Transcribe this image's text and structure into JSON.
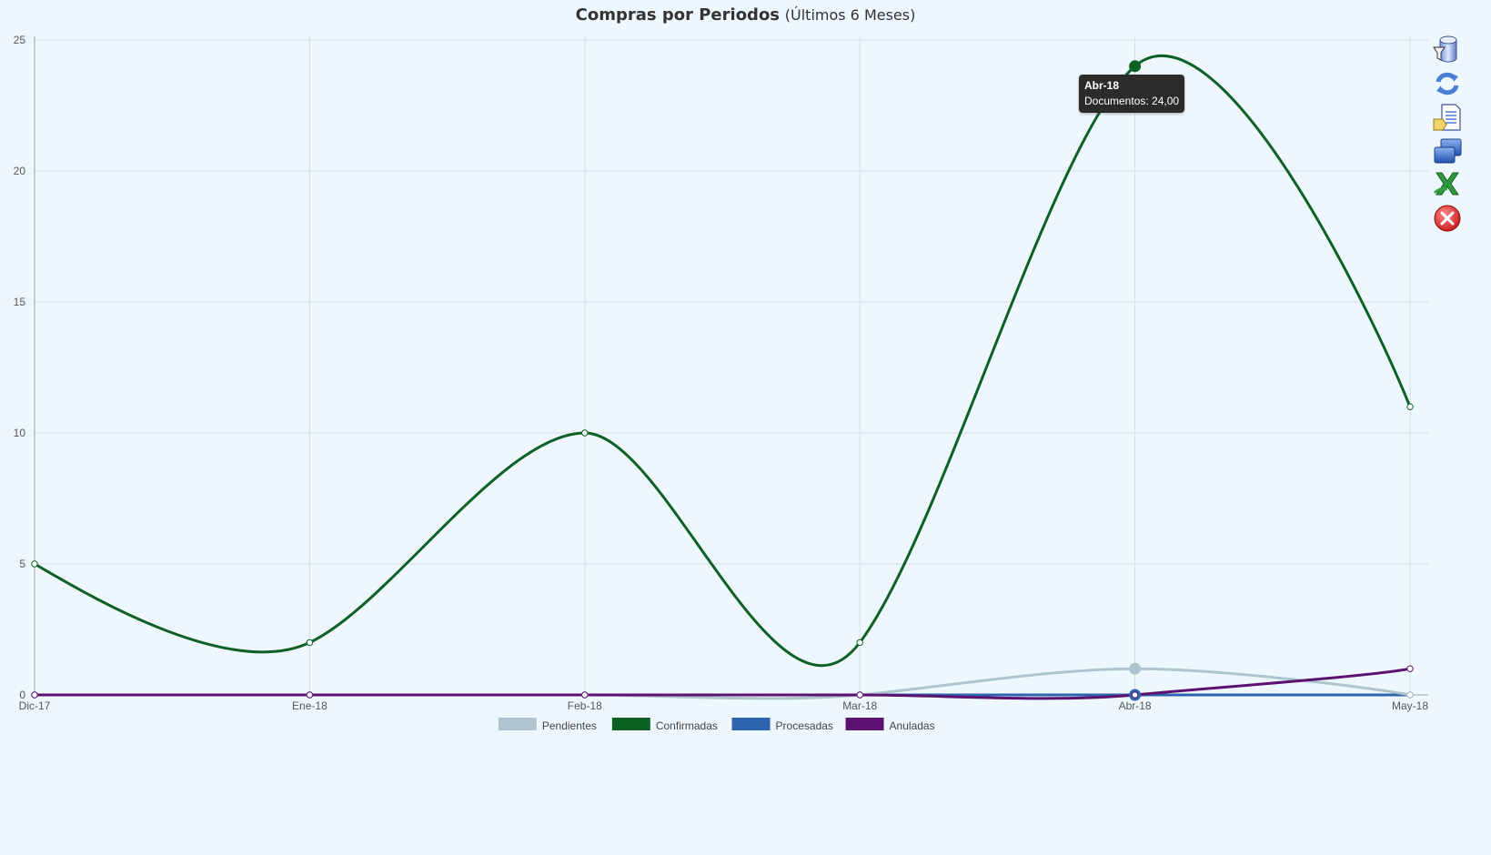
{
  "title": {
    "main": "Compras por Periodos",
    "sub": "(Últimos 6 Meses)"
  },
  "colors": {
    "background": "#eff7fe",
    "grid": "#d6dde4",
    "axis": "#9aa5ad",
    "tooltip_bg": "#2b2b2b"
  },
  "toolbar": {
    "icons": [
      "database-filter-icon",
      "refresh-icon",
      "report-document-icon",
      "window-icon",
      "excel-export-icon",
      "close-icon"
    ]
  },
  "tooltip": {
    "title": "Abr-18",
    "text": "Documentos: 24,00"
  },
  "chart_data": {
    "type": "line",
    "categories": [
      "Dic-17",
      "Ene-18",
      "Feb-18",
      "Mar-18",
      "Abr-18",
      "May-18"
    ],
    "ylim": [
      0,
      25
    ],
    "yticks": [
      "0",
      "5",
      "10",
      "15",
      "20",
      "25"
    ],
    "grid": true,
    "smooth": true,
    "legend_position": "bottom-center",
    "series": [
      {
        "name": "Pendientes",
        "color": "#aec5cf",
        "values": [
          0,
          0,
          0,
          0,
          1,
          0
        ]
      },
      {
        "name": "Confirmadas",
        "color": "#0d6125",
        "values": [
          5,
          2,
          10,
          2,
          24,
          11
        ]
      },
      {
        "name": "Procesadas",
        "color": "#2e64ae",
        "values": [
          0,
          0,
          0,
          0,
          0,
          0
        ]
      },
      {
        "name": "Anuladas",
        "color": "#5b1270",
        "values": [
          0,
          0,
          0,
          0,
          0,
          1
        ]
      }
    ],
    "highlight": {
      "series": "Confirmadas",
      "category": "Abr-18",
      "value": 24
    }
  }
}
